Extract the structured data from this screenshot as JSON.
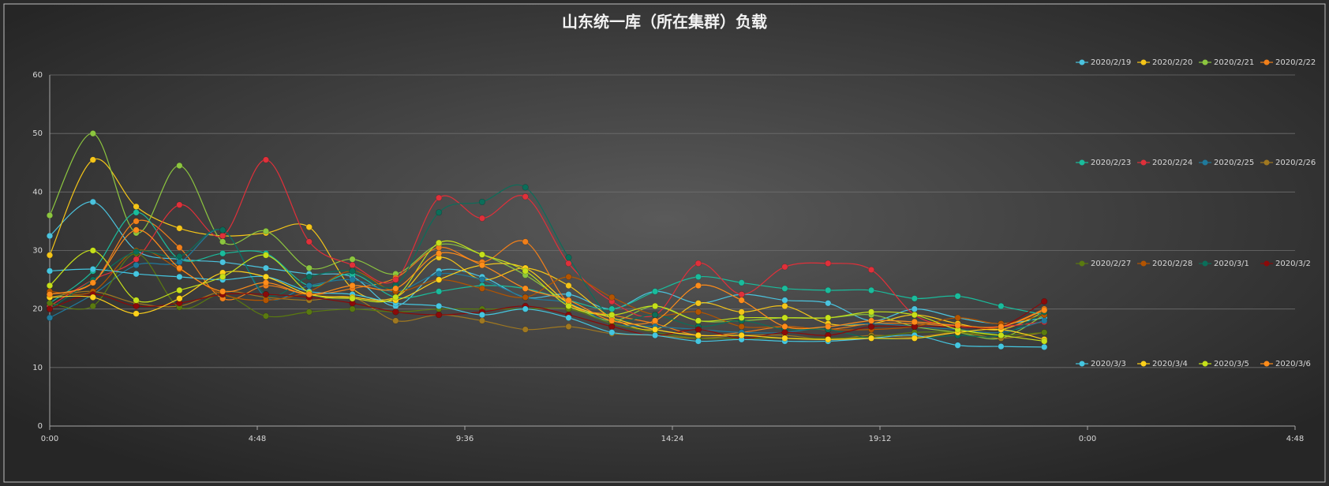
{
  "chart_data": {
    "type": "line",
    "title": "山东统一库（所在集群）负载",
    "x": [
      0,
      1,
      2,
      3,
      4,
      5,
      6,
      7,
      8,
      9,
      10,
      11,
      12,
      13,
      14,
      15,
      16,
      17,
      18,
      19,
      20,
      21,
      22,
      23
    ],
    "xlim": [
      0,
      28.8
    ],
    "xticks": [
      {
        "value": 0,
        "label": "0:00"
      },
      {
        "value": 4.8,
        "label": "4:48"
      },
      {
        "value": 9.6,
        "label": "9:36"
      },
      {
        "value": 14.4,
        "label": "14:24"
      },
      {
        "value": 19.2,
        "label": "19:12"
      },
      {
        "value": 24,
        "label": "0:00"
      },
      {
        "value": 28.8,
        "label": "4:48"
      }
    ],
    "ylim": [
      0,
      60
    ],
    "yticks": [
      0,
      10,
      20,
      30,
      40,
      50,
      60
    ],
    "grid": true,
    "legend": "right",
    "series": [
      {
        "name": "2020/2/19",
        "color": "#4bc3de",
        "values": [
          32.5,
          38.3,
          30,
          28.5,
          28,
          27,
          26,
          25.5,
          20.5,
          26.5,
          25.5,
          22,
          22.5,
          20,
          23,
          21,
          22.5,
          21.5,
          21,
          18,
          20,
          18.5,
          17.5,
          18.5
        ]
      },
      {
        "name": "2020/2/20",
        "color": "#f5c518",
        "values": [
          29.2,
          45.5,
          37.5,
          33.8,
          32.5,
          33,
          34,
          23.5,
          22,
          28.8,
          25,
          27,
          24,
          18.5,
          16.5,
          21,
          19.5,
          20.5,
          17.5,
          17.5,
          19,
          17.5,
          16.5,
          19.5
        ]
      },
      {
        "name": "2020/2/21",
        "color": "#8cc63f",
        "values": [
          36,
          50,
          33,
          44.5,
          31.5,
          33.3,
          27,
          28.5,
          26,
          31,
          29.3,
          25.8,
          21,
          18,
          20.5,
          18,
          18,
          18.5,
          18.5,
          19,
          17,
          16,
          15,
          19
        ]
      },
      {
        "name": "2020/2/22",
        "color": "#f07f1a",
        "values": [
          22.5,
          24.5,
          35,
          30.5,
          21.8,
          24,
          22.5,
          23.5,
          25.3,
          30.5,
          28,
          31.5,
          21,
          19,
          17.5,
          15.5,
          16,
          17,
          16.5,
          17.5,
          17.5,
          17,
          17,
          20
        ]
      },
      {
        "name": "2020/2/23",
        "color": "#1abc9c",
        "values": [
          21,
          26.5,
          36.5,
          28.5,
          29.5,
          29.5,
          24,
          26,
          22,
          23,
          24,
          23.5,
          21.5,
          20,
          23,
          25.5,
          24.5,
          23.5,
          23.2,
          23.2,
          21.8,
          22.2,
          20.5,
          19
        ]
      },
      {
        "name": "2020/2/24",
        "color": "#e0303a",
        "values": [
          20.5,
          25,
          28.5,
          37.8,
          32.5,
          45.5,
          31.5,
          27.5,
          25,
          39,
          35.5,
          39.2,
          27.8,
          21.3,
          19,
          27.8,
          22.5,
          27.2,
          27.8,
          26.7,
          19,
          17,
          17,
          17.8
        ]
      },
      {
        "name": "2020/2/25",
        "color": "#1f7a9c",
        "values": [
          18.5,
          22.5,
          27.5,
          28,
          33.5,
          22,
          24,
          25,
          23,
          26,
          25,
          22,
          21,
          17.5,
          17,
          16.5,
          16,
          16,
          17,
          17.5,
          17,
          16.5,
          16,
          18
        ]
      },
      {
        "name": "2020/2/26",
        "color": "#a07820",
        "values": [
          22,
          23,
          21,
          20.5,
          23,
          22,
          21.5,
          22,
          18,
          19,
          18,
          16.5,
          17,
          15.8,
          15.5,
          15,
          15.5,
          15.5,
          14.8,
          15.5,
          15.2,
          16,
          15,
          16
        ]
      },
      {
        "name": "2020/2/27",
        "color": "#5a7a10",
        "values": [
          21,
          20.5,
          29.5,
          20.3,
          22.5,
          18.8,
          19.5,
          20,
          19.5,
          20,
          20,
          20,
          20,
          17.5,
          16,
          15,
          15,
          15,
          15,
          15.2,
          16,
          16,
          15.5,
          16
        ]
      },
      {
        "name": "2020/2/28",
        "color": "#b35400",
        "values": [
          23,
          23,
          30,
          26.8,
          22.5,
          21.5,
          23,
          26.5,
          23,
          25,
          23.5,
          22,
          25.5,
          22,
          19,
          19.5,
          17,
          17,
          16.5,
          16.5,
          17,
          18.5,
          17.5,
          19
        ]
      },
      {
        "name": "2020/3/1",
        "color": "#0b6e5a",
        "values": [
          20,
          25,
          29.8,
          29,
          33.5,
          22.5,
          25.5,
          26.5,
          24,
          36.5,
          38.3,
          40.8,
          28.8,
          18.5,
          19,
          17,
          18,
          16.5,
          16.5,
          15,
          15,
          15.5,
          15.5,
          19.5
        ]
      },
      {
        "name": "2020/3/2",
        "color": "#8b0a0a",
        "values": [
          20,
          22.5,
          20.5,
          21,
          22.5,
          22.5,
          22,
          21,
          19.5,
          19,
          19.5,
          20.5,
          19,
          17,
          15.5,
          16.5,
          15,
          16,
          15.5,
          17,
          17,
          17,
          17,
          21.3
        ]
      },
      {
        "name": "2020/3/3",
        "color": "#45c6e0",
        "values": [
          26.5,
          26.8,
          26,
          25.5,
          25,
          25.5,
          23,
          22.5,
          21,
          20.5,
          19,
          20,
          18.5,
          16,
          15.5,
          14.5,
          14.8,
          14.5,
          14.5,
          15,
          15.5,
          13.8,
          13.6,
          13.5
        ]
      },
      {
        "name": "2020/3/4",
        "color": "#ffd11a",
        "values": [
          22,
          22,
          19.2,
          21.8,
          26.2,
          25.5,
          22.5,
          22,
          21.5,
          25,
          27.5,
          27,
          21,
          18.5,
          16.5,
          15.5,
          15.5,
          15,
          14.8,
          15,
          15,
          16,
          16.5,
          14.8
        ]
      },
      {
        "name": "2020/3/5",
        "color": "#c5e01a",
        "values": [
          24,
          30,
          21.5,
          23.2,
          25.5,
          29.2,
          22.8,
          21.8,
          22,
          31.3,
          29.3,
          26.5,
          20.5,
          19,
          20.5,
          18,
          18.5,
          18.5,
          18.5,
          19.5,
          19,
          16.5,
          15.5,
          14.5
        ]
      },
      {
        "name": "2020/3/6",
        "color": "#ff8c1a",
        "values": [
          22.5,
          24.5,
          33.5,
          27,
          23,
          24.5,
          22.5,
          24,
          23.5,
          29.5,
          27.5,
          23.5,
          21.5,
          18,
          18,
          24,
          21.5,
          17,
          17,
          18,
          17.8,
          17.2,
          17,
          19.8
        ]
      }
    ]
  }
}
